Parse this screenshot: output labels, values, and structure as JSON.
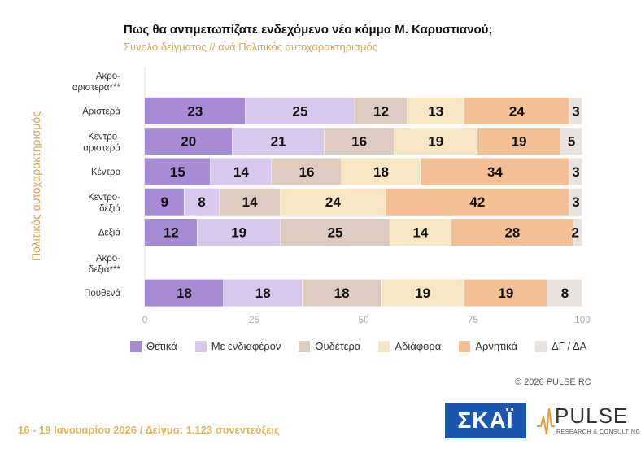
{
  "chart_data": {
    "type": "bar",
    "orientation": "horizontal",
    "stacked": true,
    "title": "Πως θα αντιμετωπίζατε ενδεχόμενο νέο κόμμα Μ. Καρυστιανού;",
    "subtitle": "Σύνολο δείγματος // ανά Πολιτικός αυτοχαρακτηρισμός",
    "ylabel": "Πολιτικός αυτοχαρακτηρισμός",
    "categories": [
      "Ακρο-\nαριστερά***",
      "Αριστερά",
      "Κεντρο-\nαριστερά",
      "Κέντρο",
      "Κεντρο-\nδεξιά",
      "Δεξιά",
      "Ακρο-\nδεξιά***",
      "Πουθενά"
    ],
    "series": [
      {
        "name": "Θετικά",
        "color": "#a78bd4",
        "values": [
          null,
          23,
          20,
          15,
          9,
          12,
          null,
          18
        ]
      },
      {
        "name": "Με ενδιαφέρον",
        "color": "#d9c8ee",
        "values": [
          null,
          25,
          21,
          14,
          8,
          19,
          null,
          18
        ]
      },
      {
        "name": "Ουδέτερα",
        "color": "#dccbbe",
        "values": [
          null,
          12,
          16,
          16,
          14,
          25,
          null,
          18
        ]
      },
      {
        "name": "Αδιάφορα",
        "color": "#f6e6c4",
        "values": [
          null,
          13,
          19,
          18,
          24,
          14,
          null,
          19
        ]
      },
      {
        "name": "Αρνητικά",
        "color": "#f3c095",
        "values": [
          null,
          24,
          19,
          34,
          42,
          28,
          null,
          19
        ]
      },
      {
        "name": "ΔΓ / ΔΑ",
        "color": "#e8e3df",
        "values": [
          null,
          3,
          5,
          3,
          3,
          2,
          null,
          8
        ]
      }
    ],
    "xlim": [
      0,
      100
    ],
    "xticks": [
      0,
      25,
      50,
      75,
      100
    ],
    "legend_position": "bottom",
    "grid": false
  },
  "copyright": "©  2026  PULSE RC",
  "footer": "16 - 19 Ιανουαρίου 2026  /  Δείγμα:  1.123 συνεντεύξεις",
  "logos": {
    "skai": "ΣΚΑΪ",
    "pulse_name": "PULSE",
    "pulse_sub": "RESEARCH & CONSULTING"
  }
}
